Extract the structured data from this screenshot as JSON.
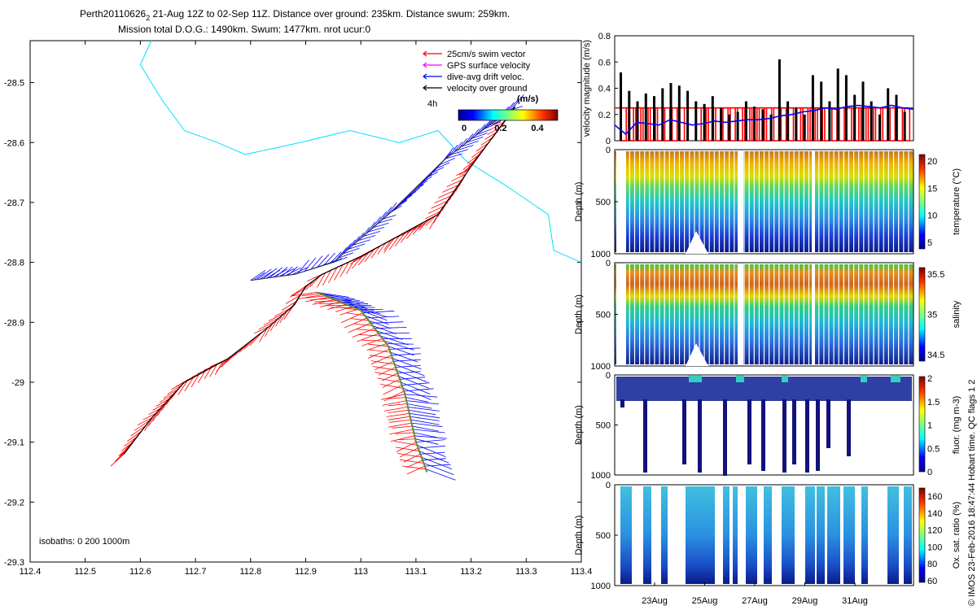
{
  "title": {
    "line1": "Perth20110626",
    "line1_sub": "2",
    "line1_rest": " 21-Aug 12Z to 02-Sep 11Z. Distance over ground: 235km. Distance swum: 259km.",
    "line2": "Mission total D.O.G.: 1490km. Swum: 1477km. nrot ucur:0"
  },
  "map": {
    "type": "map-vector",
    "xticks": [
      "112.4",
      "112.5",
      "112.6",
      "112.7",
      "112.8",
      "112.9",
      "113",
      "113.1",
      "113.2",
      "113.3",
      "113.4"
    ],
    "yticks": [
      "-28.5",
      "-28.6",
      "-28.7",
      "-28.8",
      "-28.9",
      "-29",
      "-29.1",
      "-29.2",
      "-29.3"
    ],
    "xlim": [
      112.4,
      113.4
    ],
    "ylim": [
      -29.3,
      -28.43
    ],
    "isobaths_label": "isobaths: 0   200  1000m",
    "legend": [
      {
        "label": "25cm/s swim vector",
        "color": "#ff0000"
      },
      {
        "label": "GPS surface velocity",
        "color": "#ff00ff"
      },
      {
        "label": "dive-avg drift veloc.",
        "color": "#0000ff"
      },
      {
        "label": "velocity over ground",
        "color": "#000000"
      }
    ],
    "scale_label": "4h",
    "colorbar_unit": "(m/s)",
    "colorbar_ticks": [
      "0",
      "0.2",
      "0.4"
    ],
    "track": [
      [
        112.57,
        -29.12
      ],
      [
        112.62,
        -29.06
      ],
      [
        112.68,
        -29.0
      ],
      [
        112.76,
        -28.96
      ],
      [
        112.83,
        -28.91
      ],
      [
        112.88,
        -28.87
      ],
      [
        112.9,
        -28.84
      ],
      [
        112.93,
        -28.82
      ],
      [
        113.0,
        -28.79
      ],
      [
        113.06,
        -28.76
      ],
      [
        113.14,
        -28.72
      ],
      [
        113.2,
        -28.64
      ],
      [
        113.28,
        -28.54
      ]
    ],
    "track2": [
      [
        112.92,
        -28.85
      ],
      [
        113.0,
        -28.88
      ],
      [
        113.05,
        -28.94
      ],
      [
        113.08,
        -29.02
      ],
      [
        113.1,
        -29.1
      ],
      [
        113.12,
        -29.15
      ]
    ],
    "track3": [
      [
        112.8,
        -28.83
      ],
      [
        112.88,
        -28.82
      ],
      [
        112.95,
        -28.8
      ],
      [
        113.05,
        -28.72
      ],
      [
        113.15,
        -28.63
      ],
      [
        113.22,
        -28.58
      ],
      [
        113.28,
        -28.54
      ]
    ],
    "coast": [
      [
        112.62,
        -28.43
      ],
      [
        112.6,
        -28.47
      ],
      [
        112.64,
        -28.53
      ],
      [
        112.68,
        -28.58
      ],
      [
        112.74,
        -28.6
      ],
      [
        112.79,
        -28.62
      ],
      [
        112.89,
        -28.6
      ],
      [
        112.98,
        -28.58
      ],
      [
        113.07,
        -28.6
      ],
      [
        113.14,
        -28.58
      ],
      [
        113.19,
        -28.63
      ],
      [
        113.26,
        -28.67
      ],
      [
        113.34,
        -28.72
      ],
      [
        113.35,
        -28.78
      ],
      [
        113.4,
        -28.8
      ]
    ]
  },
  "panels": {
    "velocity": {
      "ylabel": "velocity magnitude (m/s)",
      "yticks": [
        "0",
        "0.2",
        "0.4",
        "0.6",
        "0.8"
      ],
      "ylim": [
        0,
        0.8
      ],
      "swim_level": 0.25,
      "drift_line": [
        0.12,
        0.05,
        0.14,
        0.13,
        0.12,
        0.16,
        0.14,
        0.12,
        0.13,
        0.15,
        0.14,
        0.15,
        0.16,
        0.16,
        0.17,
        0.19,
        0.2,
        0.22,
        0.23,
        0.25,
        0.24,
        0.26,
        0.27,
        0.26,
        0.25,
        0.27,
        0.25,
        0.24
      ],
      "ground_bars": [
        0.52,
        0.38,
        0.3,
        0.36,
        0.34,
        0.4,
        0.44,
        0.42,
        0.38,
        0.3,
        0.28,
        0.34,
        0.25,
        0.2,
        0.22,
        0.3,
        0.26,
        0.24,
        0.2,
        0.62,
        0.3,
        0.25,
        0.2,
        0.5,
        0.45,
        0.3,
        0.55,
        0.5,
        0.35,
        0.45,
        0.3,
        0.2,
        0.4,
        0.35,
        0.22
      ]
    },
    "temperature": {
      "ylabel": "Depth (m)",
      "cblabel": "temperature (°C)",
      "cbticks": [
        "5",
        "10",
        "15",
        "20"
      ],
      "yticks": [
        "0",
        "500",
        "1000"
      ]
    },
    "salinity": {
      "ylabel": "Depth (m)",
      "cblabel": "salinity",
      "cbticks": [
        "34.5",
        "35",
        "35.5"
      ],
      "yticks": [
        "0",
        "500",
        "1000"
      ]
    },
    "fluor": {
      "ylabel": "Depth (m)",
      "cblabel": "fluor. (mg m-3)",
      "cbticks": [
        "0",
        "0.5",
        "1",
        "1.5",
        "2"
      ],
      "yticks": [
        "0",
        "500",
        "1000"
      ]
    },
    "oxygen": {
      "ylabel": "Depth (m)",
      "cblabel": "Ox. sat. ratio (%)",
      "cbticks": [
        "60",
        "80",
        "100",
        "120",
        "140",
        "160"
      ],
      "yticks": [
        "0",
        "500",
        "1000"
      ]
    },
    "xticks": [
      "23Aug",
      "25Aug",
      "27Aug",
      "29Aug",
      "31Aug"
    ]
  },
  "side_text": "© IMOS 23-Feb-2016 18:47:44 Hobart time. QC flags 1  2"
}
